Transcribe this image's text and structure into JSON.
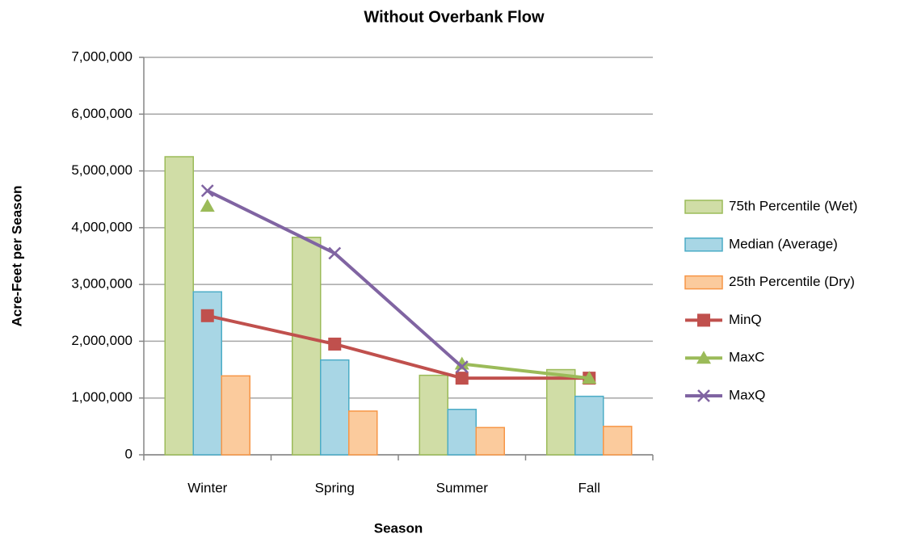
{
  "chart_data": {
    "type": "bar",
    "title": "Without Overbank Flow",
    "x_label": "Season",
    "y_label": "Acre-Feet per Season",
    "categories": [
      "Winter",
      "Spring",
      "Summer",
      "Fall"
    ],
    "series": [
      {
        "name": "75th Percentile (Wet)",
        "type": "bar",
        "color": "#d0dda6",
        "edge_color": "#9bbb59",
        "values": [
          5250000,
          3830000,
          1400000,
          1500000
        ]
      },
      {
        "name": "Median (Average)",
        "type": "bar",
        "color": "#a8d6e5",
        "edge_color": "#4bacc6",
        "values": [
          2870000,
          1670000,
          800000,
          1030000
        ]
      },
      {
        "name": "25th Percentile (Dry)",
        "type": "bar",
        "color": "#fbcb9d",
        "edge_color": "#f79646",
        "values": [
          1390000,
          770000,
          480000,
          500000
        ]
      },
      {
        "name": "MinQ",
        "type": "line",
        "marker": "square",
        "color": "#c0504d",
        "values": [
          2450000,
          1950000,
          1350000,
          1350000
        ]
      },
      {
        "name": "MaxC",
        "type": "line",
        "marker": "triangle",
        "color": "#9bbb59",
        "values": [
          4380000,
          null,
          1600000,
          1350000
        ]
      },
      {
        "name": "MaxQ",
        "type": "line",
        "marker": "x",
        "color": "#8064a2",
        "values": [
          4650000,
          3550000,
          1550000,
          null
        ]
      }
    ],
    "ylim": [
      0,
      7000000
    ],
    "yticks": [
      0,
      {
        "value": 1000000,
        "label": "1,000,000"
      },
      {
        "value": 2000000,
        "label": "2,000,000"
      },
      {
        "value": 3000000,
        "label": "3,000,000"
      },
      {
        "value": 4000000,
        "label": "4,000,000"
      },
      {
        "value": 5000000,
        "label": "5,000,000"
      },
      {
        "value": 6000000,
        "label": "6,000,000"
      },
      {
        "value": 7000000,
        "label": "7,000,000"
      }
    ],
    "grid": true,
    "legend": "right"
  }
}
